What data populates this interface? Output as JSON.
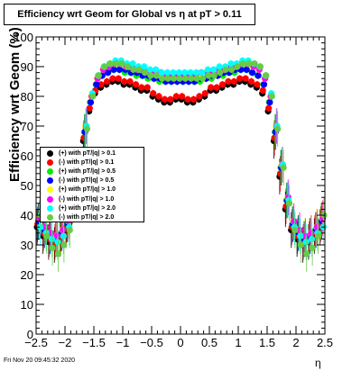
{
  "title": "Efficiency wrt Geom for Global vs   η at pT > 0.11",
  "footer": {
    "date": "Fri Nov 20 09:45:32 2020"
  },
  "chart_data": {
    "type": "scatter",
    "title": "Efficiency wrt Geom for Global vs   η at pT > 0.11",
    "xlabel": "η",
    "ylabel": "Efficiency wrt Geom (%)",
    "xlim": [
      -2.5,
      2.5
    ],
    "ylim": [
      0,
      100
    ],
    "xticks": [
      "−2.5",
      "−2",
      "−1.5",
      "−1",
      "−0.5",
      "0",
      "0.5",
      "1",
      "1.5",
      "2",
      "2.5"
    ],
    "yticks": [
      "0",
      "10",
      "20",
      "30",
      "40",
      "50",
      "60",
      "70",
      "80",
      "90",
      "100"
    ],
    "grid": false,
    "legend_position": "left-middle",
    "eta": [
      -2.45,
      -2.35,
      -2.25,
      -2.15,
      -2.05,
      -1.95,
      -1.85,
      -1.75,
      -1.65,
      -1.55,
      -1.45,
      -1.35,
      -1.25,
      -1.15,
      -1.05,
      -0.95,
      -0.85,
      -0.75,
      -0.65,
      -0.55,
      -0.45,
      -0.35,
      -0.25,
      -0.15,
      -0.05,
      0.05,
      0.15,
      0.25,
      0.35,
      0.45,
      0.55,
      0.65,
      0.75,
      0.85,
      0.95,
      1.05,
      1.15,
      1.25,
      1.35,
      1.45,
      1.55,
      1.65,
      1.75,
      1.85,
      1.95,
      2.05,
      2.15,
      2.25,
      2.35,
      2.45
    ],
    "series": [
      {
        "name": "(+) with pT/|q| > 0.1",
        "color": "#000000",
        "values": [
          36,
          33,
          31,
          30,
          32,
          35,
          42,
          53,
          65,
          75,
          81,
          83,
          84,
          85,
          85,
          84,
          84,
          83,
          82,
          82,
          80,
          79,
          78,
          78,
          79,
          79,
          78,
          78,
          79,
          80,
          82,
          82,
          83,
          84,
          84,
          85,
          85,
          84,
          83,
          81,
          75,
          65,
          53,
          42,
          35,
          32,
          30,
          31,
          33,
          36
        ]
      },
      {
        "name": "(-) with pT/|q| > 0.1",
        "color": "#ff0000",
        "values": [
          37,
          34,
          32,
          31,
          33,
          36,
          43,
          54,
          66,
          76,
          82,
          84,
          85,
          86,
          86,
          85,
          85,
          84,
          83,
          83,
          81,
          80,
          79,
          79,
          80,
          80,
          79,
          79,
          80,
          81,
          83,
          83,
          84,
          85,
          85,
          86,
          86,
          85,
          84,
          82,
          76,
          66,
          54,
          43,
          36,
          33,
          31,
          32,
          34,
          37
        ]
      },
      {
        "name": "(+) with pT/|q| > 0.5",
        "color": "#00ee00",
        "values": [
          38,
          35,
          33,
          32,
          34,
          37,
          45,
          56,
          68,
          78,
          84,
          87,
          88,
          89,
          89,
          88,
          88,
          87,
          87,
          86,
          86,
          85,
          85,
          85,
          85,
          85,
          85,
          85,
          85,
          86,
          86,
          87,
          87,
          88,
          88,
          89,
          89,
          88,
          87,
          84,
          78,
          68,
          56,
          45,
          37,
          34,
          32,
          33,
          35,
          38
        ]
      },
      {
        "name": "(-) with pT/|q| > 0.5",
        "color": "#0000ff",
        "values": [
          38,
          35,
          33,
          32,
          34,
          37,
          45,
          56,
          68,
          78,
          84,
          87,
          88,
          89,
          89,
          89,
          88,
          88,
          87,
          87,
          86,
          86,
          85,
          85,
          85,
          85,
          85,
          85,
          86,
          86,
          87,
          87,
          88,
          88,
          89,
          89,
          89,
          88,
          87,
          84,
          78,
          68,
          56,
          45,
          37,
          34,
          32,
          33,
          35,
          38
        ]
      },
      {
        "name": "(+) with pT/|q| > 1.0",
        "color": "#ffff00",
        "values": [
          39,
          36,
          34,
          33,
          35,
          38,
          46,
          57,
          70,
          80,
          86,
          89,
          90,
          91,
          91,
          90,
          90,
          89,
          89,
          88,
          88,
          87,
          87,
          87,
          87,
          87,
          87,
          87,
          87,
          88,
          88,
          89,
          89,
          90,
          90,
          91,
          91,
          90,
          89,
          86,
          80,
          70,
          57,
          46,
          38,
          35,
          33,
          34,
          36,
          39
        ]
      },
      {
        "name": "(-) with pT/|q| > 1.0",
        "color": "#ff00ff",
        "values": [
          39,
          36,
          34,
          33,
          35,
          38,
          46,
          57,
          70,
          80,
          86,
          89,
          90,
          91,
          91,
          90,
          90,
          89,
          89,
          88,
          88,
          88,
          87,
          87,
          87,
          87,
          87,
          87,
          88,
          88,
          88,
          89,
          89,
          90,
          90,
          91,
          91,
          90,
          89,
          86,
          80,
          70,
          57,
          46,
          38,
          35,
          33,
          34,
          36,
          39
        ]
      },
      {
        "name": "(+) with pT/|q| > 2.0",
        "color": "#00ffff",
        "values": [
          36,
          34,
          32,
          31,
          33,
          36,
          45,
          57,
          70,
          81,
          87,
          90,
          91,
          92,
          92,
          91,
          91,
          90,
          90,
          89,
          89,
          88,
          88,
          88,
          88,
          88,
          88,
          88,
          88,
          89,
          89,
          90,
          90,
          91,
          91,
          92,
          92,
          91,
          90,
          87,
          81,
          70,
          57,
          45,
          36,
          33,
          31,
          32,
          34,
          36
        ]
      },
      {
        "name": "(-) with pT/|q| > 2.0",
        "color": "#66cc44",
        "values": [
          40,
          33,
          29,
          27,
          30,
          35,
          44,
          56,
          69,
          80,
          87,
          90,
          91,
          91,
          91,
          90,
          89,
          89,
          88,
          87,
          87,
          86,
          86,
          86,
          86,
          86,
          86,
          86,
          86,
          87,
          87,
          88,
          89,
          89,
          90,
          91,
          91,
          91,
          90,
          87,
          80,
          69,
          56,
          44,
          35,
          30,
          27,
          29,
          33,
          40
        ]
      }
    ]
  }
}
